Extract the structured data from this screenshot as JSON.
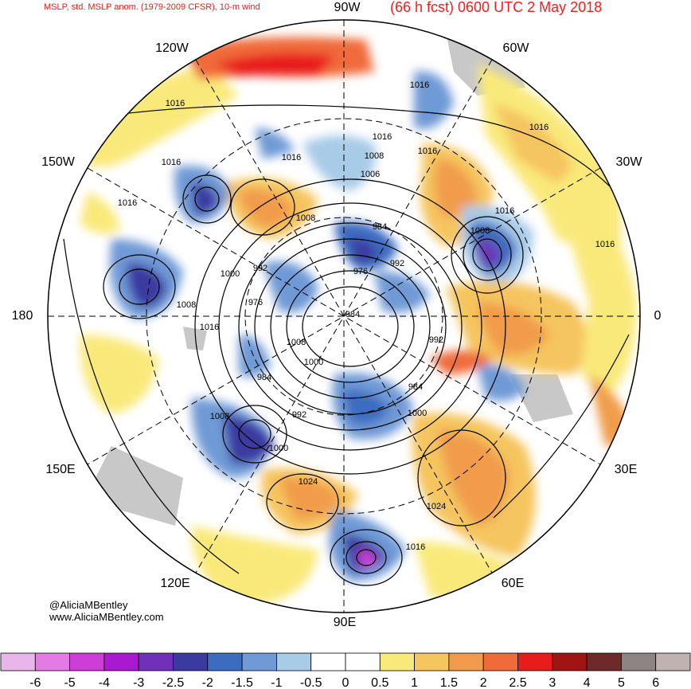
{
  "header": {
    "left": "MSLP, std. MSLP anom. (1979-2009 CFSR), 10-m wind",
    "right": "(66 h fcst) 0600 UTC 2 May 2018"
  },
  "credits": {
    "handle": "@AliciaMBentley",
    "site": "www.AliciaMBentley.com"
  },
  "longitude_labels": {
    "n90w": "90W",
    "n60w": "60W",
    "n30w": "30W",
    "e0": "0",
    "n30e": "30E",
    "n60e": "60E",
    "s90e": "90E",
    "n120e": "120E",
    "n150e": "150E",
    "w180": "180",
    "n150w": "150W",
    "n120w": "120W"
  },
  "isobar_labels": [
    "1016",
    "1016",
    "1016",
    "1016",
    "1016",
    "1016",
    "1016",
    "1016",
    "1016",
    "1016",
    "1016",
    "1008",
    "1008",
    "1008",
    "1008",
    "1008",
    "1008",
    "1006",
    "1000",
    "1000",
    "1000",
    "1000",
    "992",
    "992",
    "992",
    "992",
    "984",
    "984",
    "984",
    "984",
    "976",
    "976",
    "1024",
    "1024",
    "1016"
  ],
  "legend": {
    "labels": [
      "-6",
      "-5",
      "-4",
      "-3",
      "-2.5",
      "-2",
      "-1.5",
      "-1",
      "-0.5",
      "0",
      "0.5",
      "1",
      "1.5",
      "2",
      "2.5",
      "3",
      "4",
      "5",
      "6"
    ],
    "colors": [
      "#e8b6ea",
      "#e47be4",
      "#cc3fd6",
      "#a819d0",
      "#7030b8",
      "#3a3aa0",
      "#3c6cc0",
      "#6f9ad6",
      "#a8cbe8",
      "#ffffff",
      "#ffffff",
      "#f9e97a",
      "#f5c55e",
      "#f19c4c",
      "#f06a3a",
      "#e81c1c",
      "#a01414",
      "#6e2a2a",
      "#8e8484",
      "#c1b2b2"
    ]
  }
}
